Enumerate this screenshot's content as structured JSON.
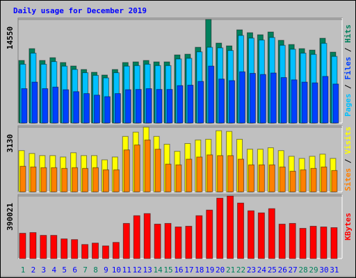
{
  "title": "Daily usage for December 2019",
  "legend_separator": "/",
  "categories": [
    "1",
    "2",
    "3",
    "4",
    "5",
    "6",
    "7",
    "8",
    "9",
    "10",
    "11",
    "12",
    "13",
    "14",
    "15",
    "16",
    "17",
    "18",
    "19",
    "20",
    "21",
    "22",
    "23",
    "24",
    "25",
    "26",
    "27",
    "28",
    "29",
    "30",
    "31"
  ],
  "category_colors": [
    "#00805c",
    "#0000ff",
    "#0000ff",
    "#0000ff",
    "#0000ff",
    "#0000ff",
    "#00805c",
    "#00805c",
    "#0000ff",
    "#0000ff",
    "#0000ff",
    "#0000ff",
    "#0000ff",
    "#00805c",
    "#00805c",
    "#0000ff",
    "#0000ff",
    "#0000ff",
    "#0000ff",
    "#0000ff",
    "#00805c",
    "#00805c",
    "#0000ff",
    "#0000ff",
    "#0000ff",
    "#0000ff",
    "#0000ff",
    "#00805c",
    "#00805c",
    "#0000ff",
    "#0000ff"
  ],
  "chart_data": [
    {
      "type": "bar",
      "ylim": [
        0,
        14550
      ],
      "yticks": [
        14550
      ],
      "series": [
        {
          "name": "Pages",
          "color": "#00c0ff",
          "values": [
            8260,
            9820,
            8260,
            8630,
            7990,
            7530,
            7070,
            6700,
            6340,
            7070,
            7990,
            8070,
            8260,
            8070,
            8070,
            9000,
            9090,
            10000,
            10640,
            10560,
            10190,
            12300,
            11930,
            11660,
            12020,
            10920,
            10370,
            9820,
            9640,
            11200,
            9360
          ]
        },
        {
          "name": "Files",
          "color": "#0040ff",
          "values": [
            4830,
            5750,
            4830,
            5050,
            4680,
            4410,
            4140,
            3920,
            3710,
            4140,
            4680,
            4720,
            4830,
            4720,
            4720,
            5260,
            5320,
            5850,
            8000,
            6180,
            5960,
            7200,
            6980,
            6820,
            7030,
            6390,
            6070,
            5750,
            5640,
            6550,
            5480
          ]
        },
        {
          "name": "Hits",
          "color": "#00805c",
          "values": [
            8790,
            10450,
            8790,
            9180,
            8500,
            8010,
            7520,
            7130,
            6740,
            7520,
            8500,
            8590,
            8790,
            8590,
            8590,
            9570,
            9670,
            10640,
            14550,
            11230,
            10840,
            13090,
            12690,
            12400,
            12790,
            11620,
            11030,
            10450,
            10250,
            11910,
            9960
          ]
        }
      ]
    },
    {
      "type": "bar",
      "ylim": [
        0,
        3130
      ],
      "yticks": [
        3130
      ],
      "series": [
        {
          "name": "Sites",
          "color": "#ff8000",
          "values": [
            1238,
            1204,
            1170,
            1170,
            1135,
            1170,
            1135,
            1170,
            1066,
            1066,
            2030,
            2270,
            2511,
            2064,
            1342,
            1307,
            1582,
            1686,
            1789,
            1754,
            1754,
            1582,
            1307,
            1307,
            1307,
            1204,
            998,
            1066,
            1135,
            1204,
            1032
          ]
        },
        {
          "name": "Visits",
          "color": "#ffff00",
          "values": [
            1995,
            1857,
            1754,
            1754,
            1685,
            1892,
            1754,
            1754,
            1548,
            1685,
            2683,
            2889,
            3130,
            2683,
            2304,
            1961,
            2339,
            2511,
            2545,
            2958,
            2924,
            2545,
            2064,
            2064,
            2133,
            1995,
            1720,
            1617,
            1720,
            1823,
            1617
          ]
        }
      ]
    },
    {
      "type": "bar",
      "ylim": [
        0,
        390021
      ],
      "yticks": [
        390021
      ],
      "series": [
        {
          "name": "KBytes",
          "color": "#ff0000",
          "values": [
            157750,
            162130,
            144610,
            144610,
            122700,
            118310,
            87640,
            96400,
            78880,
            100790,
            219100,
            267300,
            280450,
            214720,
            219100,
            197190,
            201570,
            267300,
            302360,
            376850,
            390021,
            346180,
            297980,
            284830,
            311120,
            214720,
            219100,
            188430,
            201570,
            197190,
            192810
          ]
        }
      ]
    }
  ]
}
